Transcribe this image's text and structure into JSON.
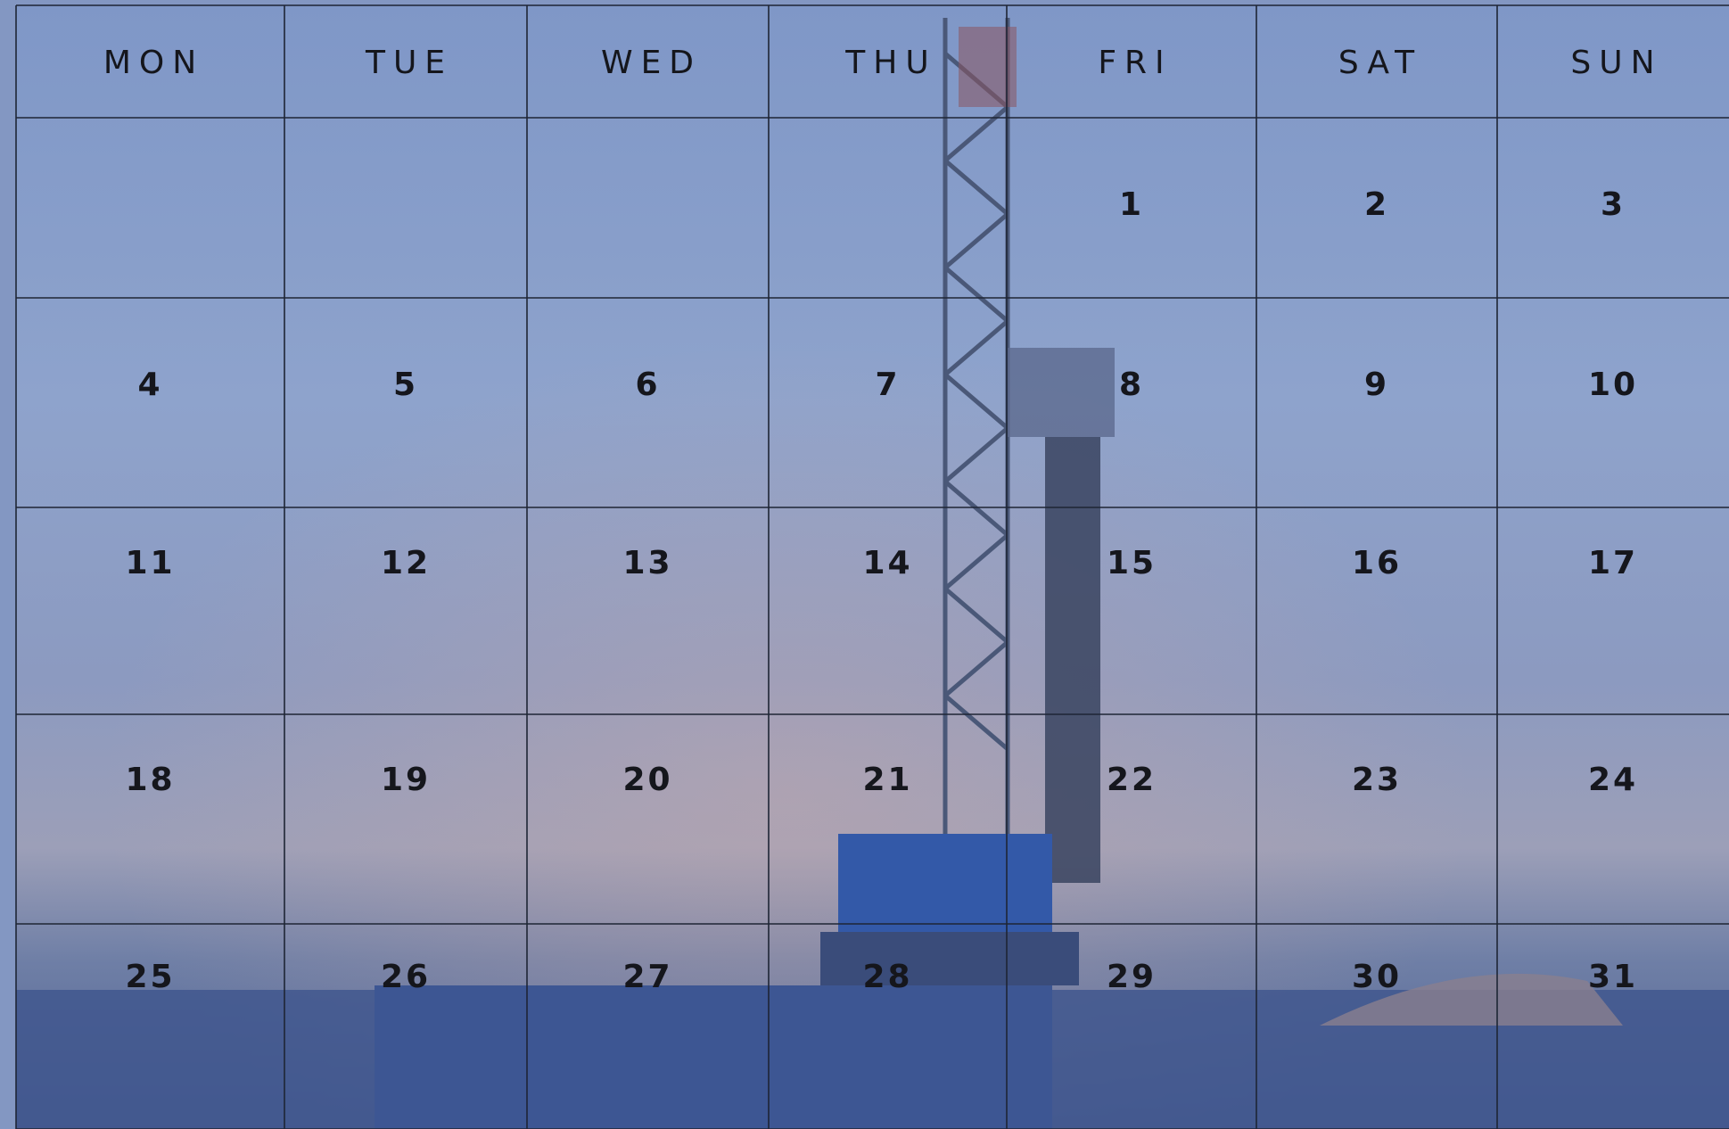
{
  "calendar": {
    "weekdays": [
      "MON",
      "TUE",
      "WED",
      "THU",
      "FRI",
      "SAT",
      "SUN"
    ],
    "weeks": [
      [
        null,
        null,
        null,
        null,
        1,
        2,
        3
      ],
      [
        4,
        5,
        6,
        7,
        8,
        9,
        10
      ],
      [
        11,
        12,
        13,
        14,
        15,
        16,
        17
      ],
      [
        18,
        19,
        20,
        21,
        22,
        23,
        24
      ],
      [
        25,
        26,
        27,
        28,
        29,
        30,
        31
      ]
    ]
  }
}
